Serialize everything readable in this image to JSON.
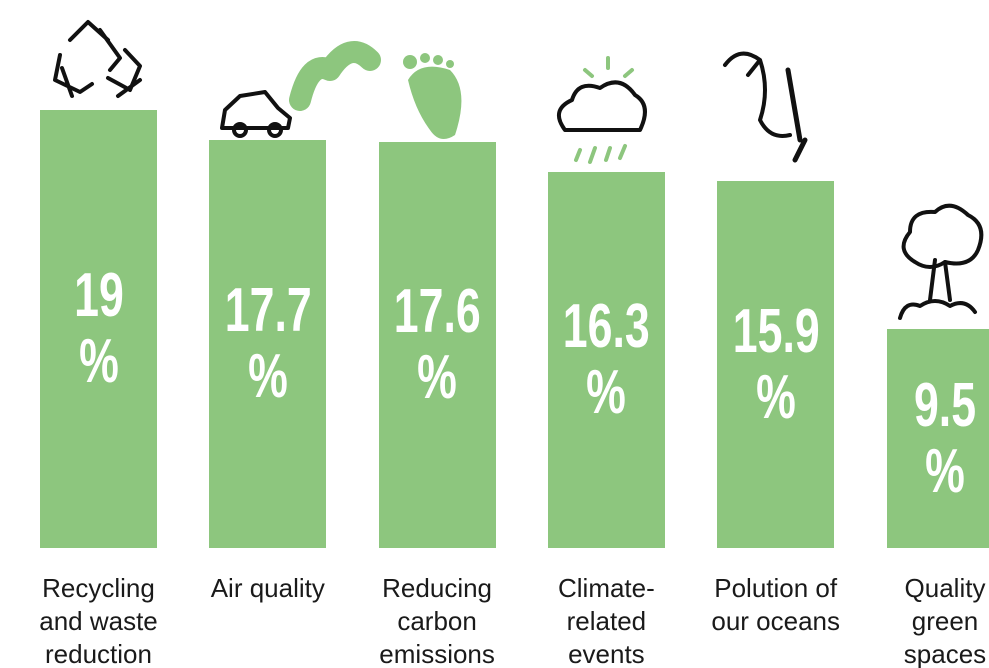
{
  "chart_data": {
    "type": "bar",
    "categories": [
      "Recycling and waste reduction",
      "Air quality",
      "Reducing carbon emissions",
      "Climate-related events",
      "Polution of our oceans",
      "Quality green spaces"
    ],
    "values": [
      19,
      17.7,
      17.6,
      16.3,
      15.9,
      9.5
    ],
    "value_labels": [
      "19 %",
      "17.7 %",
      "17.6 %",
      "16.3 %",
      "15.9 %",
      "9.5 %"
    ],
    "color": "#8dc67e",
    "ylim": [
      0,
      19
    ]
  }
}
